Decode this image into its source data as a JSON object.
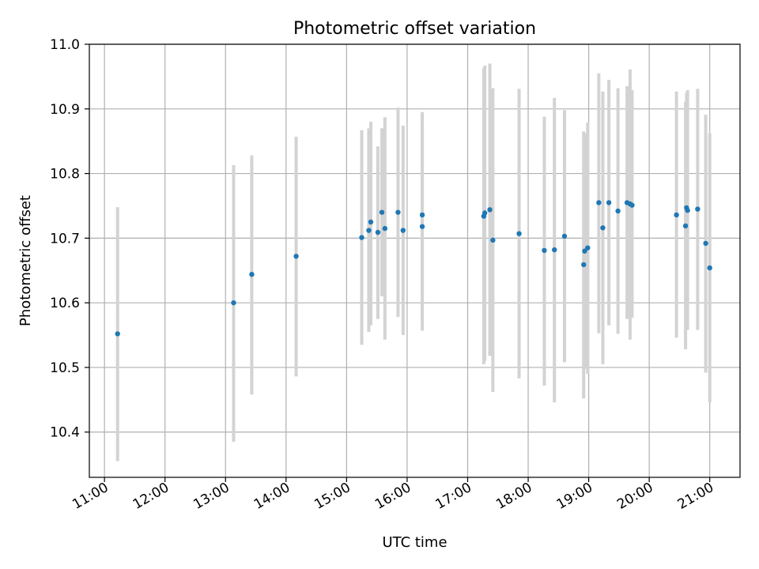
{
  "chart_data": {
    "type": "scatter",
    "title": "Photometric offset variation",
    "xlabel": "UTC time",
    "ylabel": "Photometric offset",
    "grid": true,
    "xlim": [
      "10:45",
      "21:30"
    ],
    "ylim": [
      10.33,
      11.0
    ],
    "xticks": [
      "11:00",
      "12:00",
      "13:00",
      "14:00",
      "15:00",
      "16:00",
      "17:00",
      "18:00",
      "19:00",
      "20:00",
      "21:00"
    ],
    "yticks": [
      "10.4",
      "10.5",
      "10.6",
      "10.7",
      "10.8",
      "10.9",
      "11.0"
    ],
    "colors": {
      "point": "#1f77b4",
      "errorbar": "#d3d3d3",
      "grid": "#b0b0b0"
    },
    "points": [
      {
        "x": "11:13",
        "y": 10.552,
        "ylow": 10.355,
        "yhigh": 10.748
      },
      {
        "x": "13:08",
        "y": 10.6,
        "ylow": 10.385,
        "yhigh": 10.813
      },
      {
        "x": "13:26",
        "y": 10.644,
        "ylow": 10.458,
        "yhigh": 10.828
      },
      {
        "x": "14:10",
        "y": 10.672,
        "ylow": 10.486,
        "yhigh": 10.857
      },
      {
        "x": "15:15",
        "y": 10.701,
        "ylow": 10.535,
        "yhigh": 10.867
      },
      {
        "x": "15:22",
        "y": 10.712,
        "ylow": 10.555,
        "yhigh": 10.87
      },
      {
        "x": "15:24",
        "y": 10.725,
        "ylow": 10.565,
        "yhigh": 10.88
      },
      {
        "x": "15:31",
        "y": 10.709,
        "ylow": 10.575,
        "yhigh": 10.842
      },
      {
        "x": "15:35",
        "y": 10.74,
        "ylow": 10.61,
        "yhigh": 10.87
      },
      {
        "x": "15:38",
        "y": 10.715,
        "ylow": 10.543,
        "yhigh": 10.887
      },
      {
        "x": "15:51",
        "y": 10.74,
        "ylow": 10.578,
        "yhigh": 10.902
      },
      {
        "x": "15:56",
        "y": 10.712,
        "ylow": 10.55,
        "yhigh": 10.874
      },
      {
        "x": "16:15",
        "y": 10.736,
        "ylow": 10.578,
        "yhigh": 10.895
      },
      {
        "x": "16:15",
        "y": 10.718,
        "ylow": 10.557,
        "yhigh": 10.88
      },
      {
        "x": "17:16",
        "y": 10.734,
        "ylow": 10.505,
        "yhigh": 10.963
      },
      {
        "x": "17:17",
        "y": 10.739,
        "ylow": 10.51,
        "yhigh": 10.967
      },
      {
        "x": "17:22",
        "y": 10.744,
        "ylow": 10.518,
        "yhigh": 10.97
      },
      {
        "x": "17:25",
        "y": 10.697,
        "ylow": 10.462,
        "yhigh": 10.932
      },
      {
        "x": "17:51",
        "y": 10.707,
        "ylow": 10.483,
        "yhigh": 10.931
      },
      {
        "x": "18:16",
        "y": 10.681,
        "ylow": 10.472,
        "yhigh": 10.888
      },
      {
        "x": "18:26",
        "y": 10.682,
        "ylow": 10.446,
        "yhigh": 10.917
      },
      {
        "x": "18:36",
        "y": 10.703,
        "ylow": 10.508,
        "yhigh": 10.898
      },
      {
        "x": "18:55",
        "y": 10.659,
        "ylow": 10.452,
        "yhigh": 10.865
      },
      {
        "x": "18:56",
        "y": 10.68,
        "ylow": 10.498,
        "yhigh": 10.862
      },
      {
        "x": "18:59",
        "y": 10.685,
        "ylow": 10.49,
        "yhigh": 10.879
      },
      {
        "x": "19:10",
        "y": 10.755,
        "ylow": 10.553,
        "yhigh": 10.955
      },
      {
        "x": "19:14",
        "y": 10.716,
        "ylow": 10.505,
        "yhigh": 10.927
      },
      {
        "x": "19:20",
        "y": 10.755,
        "ylow": 10.565,
        "yhigh": 10.945
      },
      {
        "x": "19:29",
        "y": 10.742,
        "ylow": 10.552,
        "yhigh": 10.932
      },
      {
        "x": "19:38",
        "y": 10.755,
        "ylow": 10.575,
        "yhigh": 10.935
      },
      {
        "x": "19:41",
        "y": 10.753,
        "ylow": 10.543,
        "yhigh": 10.961
      },
      {
        "x": "19:43",
        "y": 10.751,
        "ylow": 10.577,
        "yhigh": 10.929
      },
      {
        "x": "20:27",
        "y": 10.736,
        "ylow": 10.546,
        "yhigh": 10.927
      },
      {
        "x": "20:36",
        "y": 10.719,
        "ylow": 10.528,
        "yhigh": 10.911
      },
      {
        "x": "20:37",
        "y": 10.747,
        "ylow": 10.57,
        "yhigh": 10.925
      },
      {
        "x": "20:38",
        "y": 10.743,
        "ylow": 10.558,
        "yhigh": 10.929
      },
      {
        "x": "20:48",
        "y": 10.745,
        "ylow": 10.558,
        "yhigh": 10.931
      },
      {
        "x": "20:56",
        "y": 10.692,
        "ylow": 10.492,
        "yhigh": 10.891
      },
      {
        "x": "21:00",
        "y": 10.654,
        "ylow": 10.446,
        "yhigh": 10.862
      }
    ]
  }
}
